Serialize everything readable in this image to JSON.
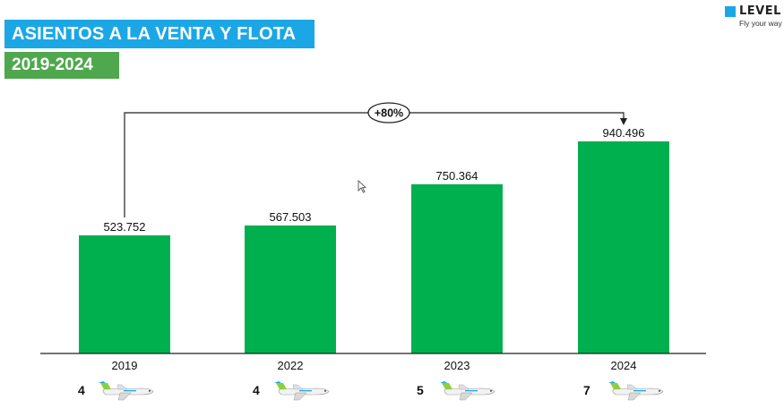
{
  "header": {
    "title": "ASIENTOS A LA VENTA Y FLOTA",
    "subtitle": "2019-2024"
  },
  "logo": {
    "name": "LEVEL",
    "tagline": "Fly your way"
  },
  "colors": {
    "title_band": "#1ba7e6",
    "subtitle_band": "#4fa84d",
    "bar": "#00b04f",
    "plane_tail": "#8ccf3f",
    "plane_accent": "#1ba7e6"
  },
  "chart_data": {
    "type": "bar",
    "title": "",
    "xlabel": "",
    "ylabel": "",
    "categories": [
      "2019",
      "2022",
      "2023",
      "2024"
    ],
    "values": [
      523752,
      567503,
      750364,
      940496
    ],
    "value_labels": [
      "523.752",
      "567.503",
      "750.364",
      "940.496"
    ],
    "ylim": [
      0,
      1000000
    ],
    "grid": false,
    "annotation": {
      "label": "+80%",
      "from": "2019",
      "to": "2024"
    }
  },
  "fleet": {
    "counts": [
      "4",
      "4",
      "5",
      "7"
    ],
    "icon": "airplane-icon"
  }
}
